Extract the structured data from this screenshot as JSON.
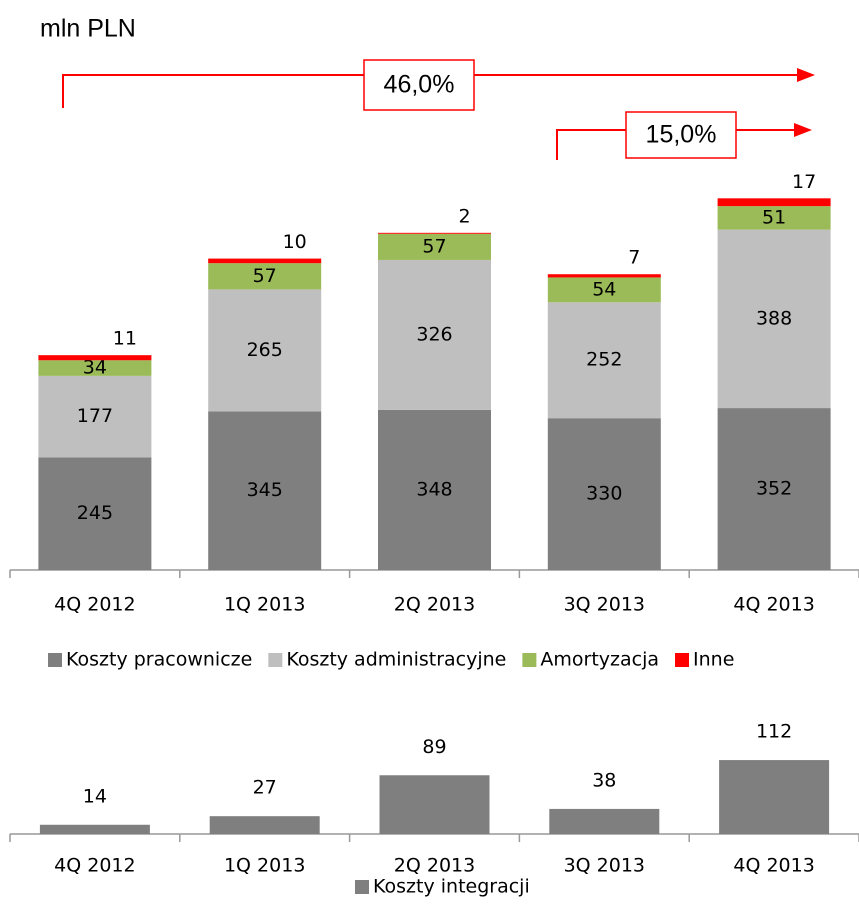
{
  "chart_data": [
    {
      "type": "stacked_bar",
      "subtitle": "mln PLN",
      "annotations": [
        "46,0%",
        "15,0%"
      ],
      "categories": [
        "4Q 2012",
        "1Q 2013",
        "2Q 2013",
        "3Q 2013",
        "4Q 2013"
      ],
      "series": [
        {
          "name": "Koszty pracownicze",
          "color": "#7f7f7f",
          "values": [
            245,
            345,
            348,
            330,
            352
          ]
        },
        {
          "name": "Koszty administracyjne",
          "color": "#bfbfbf",
          "values": [
            177,
            265,
            326,
            252,
            388
          ]
        },
        {
          "name": "Amortyzacja",
          "color": "#9bbb59",
          "values": [
            34,
            57,
            57,
            54,
            51
          ]
        },
        {
          "name": "Inne",
          "color": "#ff0000",
          "values": [
            11,
            10,
            2,
            7,
            17
          ]
        }
      ]
    },
    {
      "type": "bar",
      "categories": [
        "4Q 2012",
        "1Q 2013",
        "2Q 2013",
        "3Q 2013",
        "4Q 2013"
      ],
      "series": [
        {
          "name": "Koszty integracji",
          "color": "#7f7f7f",
          "values": [
            14,
            27,
            89,
            38,
            112
          ]
        }
      ]
    }
  ]
}
